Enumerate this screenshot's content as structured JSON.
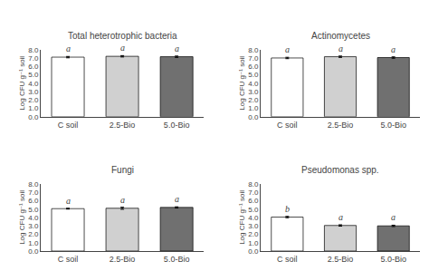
{
  "chart_data": [
    {
      "type": "bar",
      "title": "Total heterotrophic bacteria",
      "categories": [
        "C soil",
        "2.5-Bio",
        "5.0-Bio"
      ],
      "values": [
        7.1,
        7.2,
        7.15
      ],
      "errors": [
        0.08,
        0.08,
        0.08
      ],
      "annotations": [
        "a",
        "a",
        "a"
      ],
      "colors": [
        "white",
        "#d0d0d0",
        "#707070"
      ],
      "ylabel": "Log CFU g⁻¹ soil",
      "ylim": [
        0.0,
        8.0
      ],
      "yticks": [
        {
          "value": 0,
          "label": "0.0"
        },
        {
          "value": 1,
          "label": "1.0"
        },
        {
          "value": 2,
          "label": "2.0"
        },
        {
          "value": 3,
          "label": "3.0"
        },
        {
          "value": 4,
          "label": "4.0"
        },
        {
          "value": 5,
          "label": "5.0"
        },
        {
          "value": 6,
          "label": "6.0"
        },
        {
          "value": 7,
          "label": "7.0"
        },
        {
          "value": 8,
          "label": "8.0"
        }
      ],
      "grid": false
    },
    {
      "type": "bar",
      "title": "Actinomycetes",
      "categories": [
        "C soil",
        "2.5-Bio",
        "5.0-Bio"
      ],
      "values": [
        7.0,
        7.15,
        7.05
      ],
      "errors": [
        0.08,
        0.08,
        0.08
      ],
      "annotations": [
        "a",
        "a",
        "a"
      ],
      "colors": [
        "white",
        "#d0d0d0",
        "#707070"
      ],
      "ylabel": "Log CFU g⁻¹ soil",
      "ylim": [
        0.0,
        8.0
      ],
      "yticks": [
        {
          "value": 0,
          "label": "0.0"
        },
        {
          "value": 1,
          "label": "1.0"
        },
        {
          "value": 2,
          "label": "2.0"
        },
        {
          "value": 3,
          "label": "3.0"
        },
        {
          "value": 4,
          "label": "4.0"
        },
        {
          "value": 5,
          "label": "5.0"
        },
        {
          "value": 6,
          "label": "6.0"
        },
        {
          "value": 7,
          "label": "7.0"
        },
        {
          "value": 8,
          "label": "8.0"
        }
      ],
      "grid": false
    },
    {
      "type": "bar",
      "title": "Fungi",
      "categories": [
        "C soil",
        "2.5-Bio",
        "5.0-Bio"
      ],
      "values": [
        5.05,
        5.1,
        5.2
      ],
      "errors": [
        0.05,
        0.12,
        0.07
      ],
      "annotations": [
        "a",
        "a",
        "a"
      ],
      "colors": [
        "white",
        "#d0d0d0",
        "#707070"
      ],
      "ylabel": "Log CFU g⁻¹ soil",
      "ylim": [
        0.0,
        8.0
      ],
      "yticks": [
        {
          "value": 0,
          "label": "0.0"
        },
        {
          "value": 1,
          "label": "1.0"
        },
        {
          "value": 2,
          "label": "2.0"
        },
        {
          "value": 3,
          "label": "3.0"
        },
        {
          "value": 4,
          "label": "4.0"
        },
        {
          "value": 5,
          "label": "5.0"
        },
        {
          "value": 6,
          "label": "6.0"
        },
        {
          "value": 7,
          "label": "7.0"
        },
        {
          "value": 8,
          "label": "8.0"
        }
      ],
      "grid": false
    },
    {
      "type": "bar",
      "title": "Pseudomonas spp.",
      "categories": [
        "C soil",
        "2.5-Bio",
        "5.0-Bio"
      ],
      "values": [
        4.05,
        3.05,
        3.0
      ],
      "errors": [
        0.08,
        0.08,
        0.08
      ],
      "annotations": [
        "b",
        "a",
        "a"
      ],
      "colors": [
        "white",
        "#d0d0d0",
        "#707070"
      ],
      "ylabel": "Log CFU g⁻¹ soil",
      "ylim": [
        0.0,
        8.0
      ],
      "yticks": [
        {
          "value": 0,
          "label": "0.0"
        },
        {
          "value": 1,
          "label": "1.0"
        },
        {
          "value": 2,
          "label": "2.0"
        },
        {
          "value": 3,
          "label": "3.0"
        },
        {
          "value": 4,
          "label": "4.0"
        },
        {
          "value": 5,
          "label": "5.0"
        },
        {
          "value": 6,
          "label": "6.0"
        },
        {
          "value": 7,
          "label": "7.0"
        },
        {
          "value": 8,
          "label": "8.0"
        }
      ],
      "grid": false
    }
  ]
}
